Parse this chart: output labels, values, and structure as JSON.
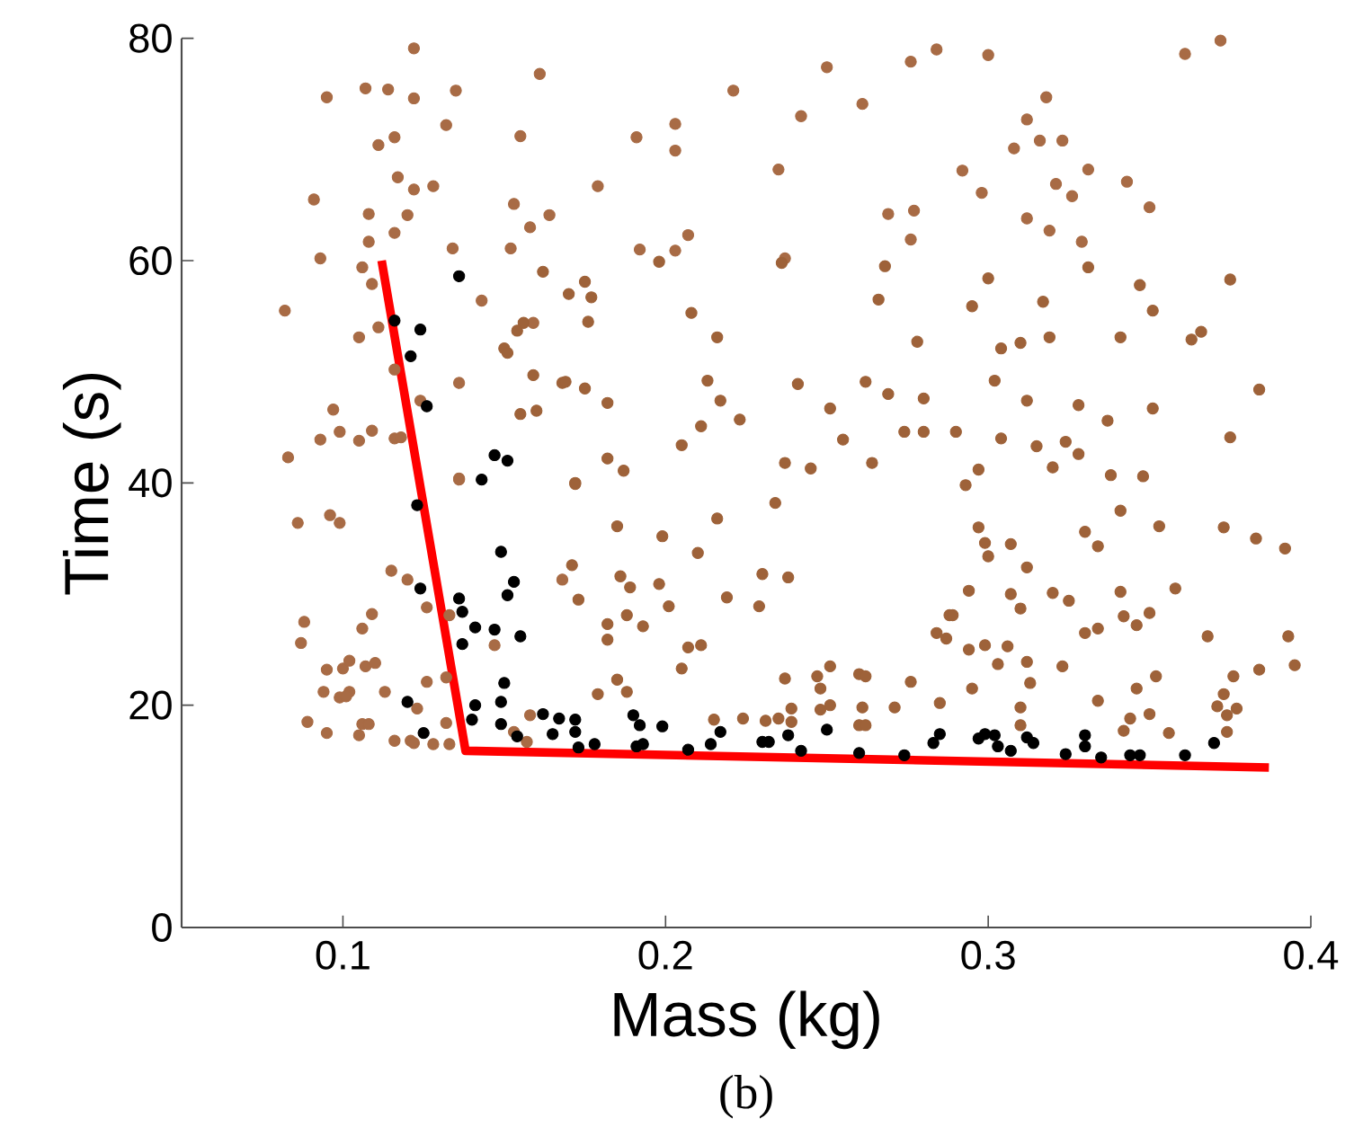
{
  "chart_data": {
    "type": "scatter",
    "xlabel": "Mass (kg)",
    "ylabel": "Time (s)",
    "annotations": [
      "(b)"
    ],
    "xlim": [
      0.05,
      0.4
    ],
    "ylim": [
      0,
      80
    ],
    "xticks": [
      0.1,
      0.2,
      0.3,
      0.4
    ],
    "yticks": [
      0,
      20,
      40,
      60,
      80
    ],
    "series": [
      {
        "marker": "circle",
        "color": "#a86b45",
        "x": [
          0.122,
          0.095,
          0.107,
          0.114,
          0.122,
          0.135,
          0.161,
          0.132,
          0.116,
          0.111,
          0.155,
          0.117,
          0.122,
          0.128,
          0.091,
          0.108,
          0.12,
          0.153,
          0.164,
          0.158,
          0.116,
          0.108,
          0.093,
          0.134,
          0.152,
          0.106,
          0.109,
          0.082,
          0.143,
          0.111,
          0.105,
          0.159,
          0.116,
          0.136,
          0.097,
          0.124,
          0.093,
          0.099,
          0.105,
          0.109,
          0.116,
          0.118,
          0.083,
          0.136,
          0.179,
          0.191,
          0.203,
          0.203,
          0.221,
          0.25,
          0.242,
          0.235,
          0.261,
          0.276,
          0.284,
          0.269,
          0.277,
          0.276,
          0.192,
          0.203,
          0.207,
          0.237,
          0.3,
          0.361,
          0.372,
          0.318,
          0.312,
          0.316,
          0.323,
          0.308,
          0.292,
          0.331,
          0.343,
          0.298,
          0.321,
          0.326,
          0.35,
          0.312,
          0.319,
          0.329,
          0.086,
          0.096,
          0.099,
          0.115,
          0.12,
          0.126,
          0.133,
          0.109,
          0.106,
          0.088,
          0.087,
          0.147,
          0.095,
          0.1,
          0.102,
          0.107,
          0.11,
          0.094,
          0.099,
          0.102,
          0.101,
          0.113,
          0.126,
          0.132,
          0.123,
          0.089,
          0.095,
          0.105,
          0.106,
          0.108,
          0.116,
          0.121,
          0.122,
          0.128,
          0.133,
          0.132,
          0.158,
          0.153,
          0.157,
          0.168,
          0.136
        ],
        "values": [
          79.1,
          74.7,
          75.5,
          75.4,
          74.6,
          75.3,
          76.8,
          72.2,
          71.1,
          70.4,
          71.2,
          67.5,
          66.4,
          66.7,
          65.5,
          64.2,
          64.1,
          65.1,
          64.1,
          63.0,
          62.5,
          61.7,
          60.2,
          61.1,
          61.1,
          59.4,
          57.9,
          55.5,
          56.4,
          54.0,
          53.1,
          54.4,
          50.2,
          49.0,
          46.6,
          47.4,
          43.9,
          44.6,
          43.8,
          44.7,
          44.0,
          44.1,
          42.3,
          40.4,
          66.7,
          71.1,
          72.3,
          69.9,
          75.3,
          77.4,
          73.0,
          68.2,
          74.1,
          77.9,
          79.0,
          64.2,
          64.5,
          61.9,
          61.0,
          60.9,
          62.3,
          60.2,
          78.5,
          78.6,
          79.8,
          74.7,
          72.7,
          70.8,
          70.8,
          70.1,
          68.1,
          68.2,
          67.1,
          66.1,
          66.9,
          65.8,
          64.8,
          63.8,
          62.7,
          61.7,
          36.4,
          37.1,
          36.4,
          32.1,
          31.3,
          28.8,
          28.1,
          28.2,
          26.9,
          27.5,
          25.6,
          25.4,
          23.2,
          23.3,
          24.0,
          23.5,
          23.8,
          21.2,
          20.7,
          21.2,
          20.8,
          21.2,
          22.1,
          22.5,
          19.7,
          18.5,
          17.5,
          17.3,
          18.3,
          18.3,
          16.8,
          16.8,
          16.6,
          16.5,
          16.5,
          18.4,
          19.1,
          17.6,
          16.7,
          31.3,
          40.3
        ]
      },
      {
        "marker": "circle",
        "color": "#9e6239",
        "x": [
          0.162,
          0.154,
          0.156,
          0.15,
          0.151,
          0.159,
          0.168,
          0.155,
          0.16,
          0.198,
          0.236,
          0.175,
          0.17,
          0.177,
          0.176,
          0.208,
          0.216,
          0.268,
          0.266,
          0.278,
          0.169,
          0.175,
          0.182,
          0.213,
          0.217,
          0.223,
          0.211,
          0.205,
          0.241,
          0.251,
          0.255,
          0.262,
          0.269,
          0.28,
          0.274,
          0.28,
          0.264,
          0.182,
          0.187,
          0.237,
          0.245,
          0.172,
          0.3,
          0.331,
          0.375,
          0.347,
          0.295,
          0.317,
          0.351,
          0.366,
          0.363,
          0.304,
          0.31,
          0.319,
          0.341,
          0.302,
          0.312,
          0.328,
          0.351,
          0.384,
          0.337,
          0.29,
          0.304,
          0.315,
          0.324,
          0.328,
          0.375,
          0.297,
          0.32,
          0.338,
          0.348,
          0.172,
          0.185,
          0.199,
          0.216,
          0.234,
          0.21,
          0.171,
          0.186,
          0.189,
          0.198,
          0.201,
          0.219,
          0.23,
          0.238,
          0.229,
          0.173,
          0.188,
          0.182,
          0.193,
          0.182,
          0.207,
          0.211,
          0.205,
          0.185,
          0.188,
          0.179,
          0.237,
          0.247,
          0.251,
          0.248,
          0.26,
          0.262,
          0.276,
          0.251,
          0.248,
          0.261,
          0.271,
          0.239,
          0.215,
          0.224,
          0.231,
          0.235,
          0.239,
          0.26,
          0.262,
          0.285,
          0.288,
          0.284,
          0.293,
          0.297,
          0.299,
          0.3,
          0.307,
          0.312,
          0.33,
          0.334,
          0.341,
          0.353,
          0.373,
          0.383,
          0.392,
          0.294,
          0.307,
          0.31,
          0.32,
          0.325,
          0.341,
          0.342,
          0.35,
          0.358,
          0.346,
          0.33,
          0.334,
          0.368,
          0.393,
          0.287,
          0.289,
          0.294,
          0.299,
          0.306,
          0.303,
          0.312,
          0.323,
          0.313,
          0.295,
          0.352,
          0.346,
          0.376,
          0.384,
          0.395,
          0.373,
          0.334,
          0.31,
          0.371,
          0.377,
          0.344,
          0.35,
          0.374,
          0.31,
          0.342,
          0.356,
          0.374
        ],
        "values": [
          59.0,
          53.7,
          54.4,
          52.1,
          51.7,
          49.7,
          49.0,
          46.2,
          46.5,
          59.9,
          59.8,
          58.1,
          57.0,
          56.7,
          54.5,
          55.3,
          53.1,
          59.5,
          56.5,
          52.7,
          49.1,
          48.5,
          47.2,
          49.2,
          47.4,
          45.7,
          45.1,
          43.4,
          48.9,
          46.7,
          43.9,
          49.1,
          48.0,
          47.6,
          44.6,
          44.6,
          41.8,
          42.2,
          41.1,
          41.8,
          41.3,
          40.0,
          58.4,
          59.4,
          58.3,
          57.8,
          55.9,
          56.3,
          55.5,
          53.6,
          52.9,
          52.1,
          52.6,
          53.1,
          53.1,
          49.2,
          47.4,
          47.0,
          46.7,
          48.4,
          45.6,
          44.6,
          44.0,
          43.3,
          43.7,
          42.6,
          44.1,
          41.2,
          41.4,
          40.7,
          40.6,
          39.9,
          36.1,
          35.2,
          36.8,
          38.2,
          33.7,
          32.6,
          31.6,
          30.6,
          30.9,
          28.9,
          29.7,
          31.8,
          31.5,
          28.9,
          29.5,
          28.1,
          27.3,
          27.1,
          25.9,
          25.2,
          25.4,
          23.3,
          22.3,
          21.2,
          21.0,
          22.4,
          22.6,
          23.5,
          21.5,
          22.8,
          22.6,
          22.1,
          20.0,
          19.6,
          19.8,
          19.8,
          19.7,
          18.7,
          18.8,
          18.6,
          18.8,
          18.5,
          18.2,
          18.2,
          20.2,
          28.1,
          26.5,
          39.8,
          36.0,
          34.6,
          33.4,
          34.5,
          32.4,
          35.6,
          34.3,
          37.5,
          36.1,
          36.0,
          35.0,
          34.1,
          30.3,
          30.0,
          28.7,
          30.1,
          29.4,
          30.2,
          28.0,
          28.3,
          30.5,
          27.2,
          26.5,
          26.9,
          26.2,
          26.2,
          26.0,
          28.1,
          25.0,
          25.4,
          25.3,
          23.7,
          23.9,
          23.5,
          22.0,
          21.5,
          22.6,
          21.5,
          22.6,
          23.2,
          23.6,
          21.0,
          20.4,
          19.8,
          19.9,
          19.7,
          18.8,
          19.2,
          19.1,
          18.2,
          17.7,
          17.5,
          17.6
        ]
      },
      {
        "marker": "circle",
        "color": "#000000",
        "x": [
          0.116,
          0.124,
          0.121,
          0.126,
          0.136,
          0.147,
          0.151,
          0.143,
          0.123,
          0.124,
          0.136,
          0.137,
          0.141,
          0.137,
          0.149,
          0.153,
          0.151,
          0.147,
          0.155,
          0.15,
          0.149,
          0.141,
          0.12,
          0.125,
          0.14,
          0.149,
          0.154,
          0.162,
          0.167,
          0.165,
          0.172,
          0.172,
          0.178,
          0.173,
          0.19,
          0.192,
          0.191,
          0.193,
          0.199,
          0.207,
          0.214,
          0.217,
          0.23,
          0.232,
          0.238,
          0.242,
          0.25,
          0.26,
          0.274,
          0.283,
          0.285,
          0.297,
          0.299,
          0.302,
          0.303,
          0.307,
          0.312,
          0.314,
          0.324,
          0.33,
          0.33,
          0.335,
          0.344,
          0.347,
          0.361,
          0.37
        ],
        "values": [
          54.6,
          53.8,
          51.4,
          46.9,
          58.6,
          42.5,
          42.0,
          40.3,
          38.0,
          30.5,
          29.6,
          28.4,
          27.0,
          25.5,
          33.8,
          31.1,
          29.9,
          26.8,
          26.2,
          22.0,
          20.3,
          20.0,
          20.3,
          17.5,
          18.7,
          18.3,
          17.2,
          19.2,
          18.8,
          17.4,
          18.7,
          17.6,
          16.5,
          16.2,
          19.1,
          18.2,
          16.3,
          16.5,
          18.1,
          16.0,
          16.5,
          17.6,
          16.7,
          16.7,
          17.3,
          15.9,
          17.8,
          15.7,
          15.5,
          16.6,
          17.4,
          17.0,
          17.4,
          17.3,
          16.3,
          15.9,
          17.1,
          16.6,
          15.6,
          17.3,
          16.3,
          15.3,
          15.5,
          15.5,
          15.5,
          16.6
        ]
      },
      {
        "type": "line",
        "marker": "none",
        "color": "#ff0000",
        "x": [
          0.112,
          0.138,
          0.387
        ],
        "values": [
          60.0,
          15.9,
          14.4
        ]
      }
    ]
  }
}
